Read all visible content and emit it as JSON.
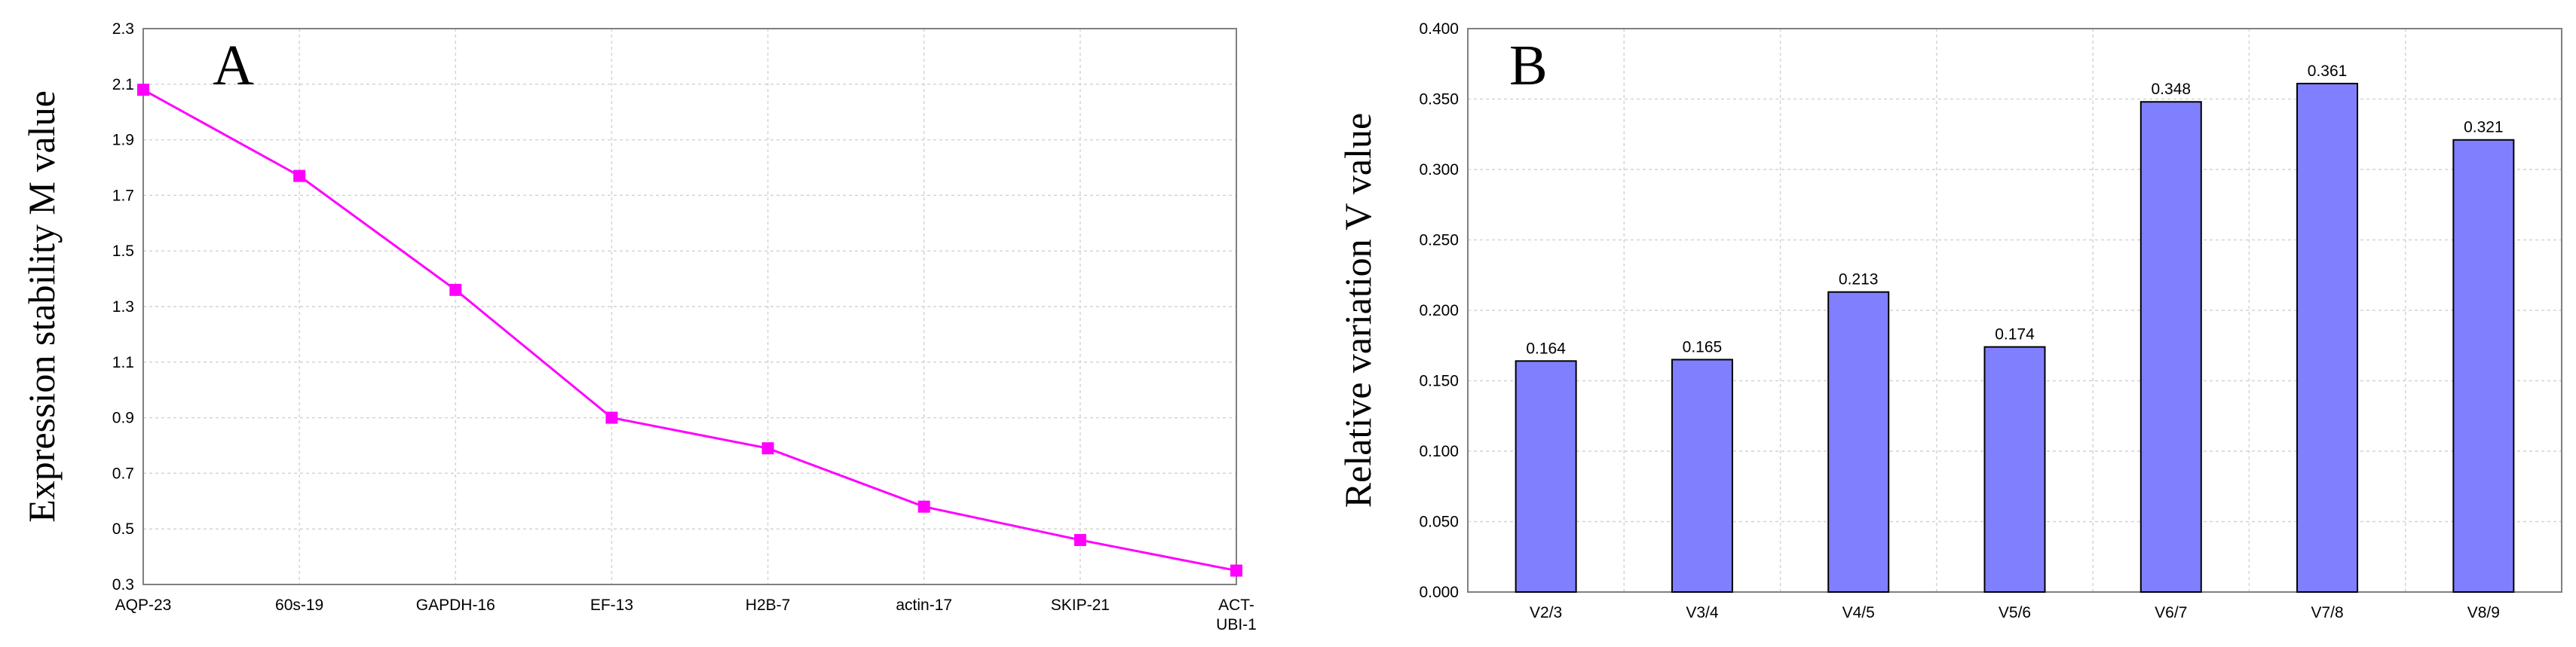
{
  "chart_data": [
    {
      "type": "line",
      "panel_label": "A",
      "ylabel": "Expression stability M value",
      "categories": [
        "AQP-23",
        "60s-19",
        "GAPDH-16",
        "EF-13",
        "H2B-7",
        "actin-17",
        "SKIP-21",
        "ACT-\nUBI-1"
      ],
      "values": [
        2.08,
        1.77,
        1.36,
        0.9,
        0.79,
        0.58,
        0.46,
        0.35
      ],
      "ylim": [
        0.3,
        2.3
      ],
      "yticks": [
        "0.3",
        "0.5",
        "0.7",
        "0.9",
        "1.1",
        "1.3",
        "1.5",
        "1.7",
        "1.9",
        "2.1",
        "2.3"
      ],
      "grid": true,
      "colors": {
        "line": "#ff00ff",
        "marker": "#ff00ff"
      }
    },
    {
      "type": "bar",
      "panel_label": "B",
      "ylabel": "Relative variation V value",
      "categories": [
        "V2/3",
        "V3/4",
        "V4/5",
        "V5/6",
        "V6/7",
        "V7/8",
        "V8/9"
      ],
      "values": [
        0.164,
        0.165,
        0.213,
        0.174,
        0.348,
        0.361,
        0.321
      ],
      "data_labels": [
        "0.164",
        "0.165",
        "0.213",
        "0.174",
        "0.348",
        "0.361",
        "0.321"
      ],
      "ylim": [
        0,
        0.4
      ],
      "yticks": [
        "0.000",
        "0.050",
        "0.100",
        "0.150",
        "0.200",
        "0.250",
        "0.300",
        "0.350",
        "0.400"
      ],
      "grid": true,
      "colors": {
        "bar": "#8080ff",
        "bar_edge": "#000000"
      }
    }
  ]
}
